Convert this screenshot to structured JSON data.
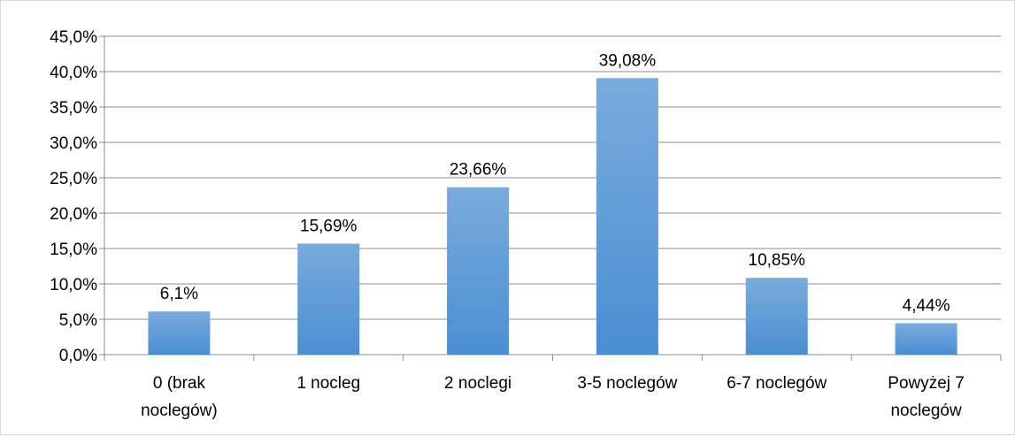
{
  "chart_data": {
    "type": "bar",
    "categories": [
      [
        "0 (brak",
        "noclegów)"
      ],
      [
        "1 nocleg"
      ],
      [
        "2 noclegi"
      ],
      [
        "3-5 noclegów"
      ],
      [
        "6-7 noclegów"
      ],
      [
        "Powyżej 7",
        "noclegów"
      ]
    ],
    "values": [
      6.1,
      15.69,
      23.66,
      39.08,
      10.85,
      4.44
    ],
    "data_labels": [
      "6,1%",
      "15,69%",
      "23,66%",
      "39,08%",
      "10,85%",
      "4,44%"
    ],
    "y_tick_labels": [
      "0,0%",
      "5,0%",
      "10,0%",
      "15,0%",
      "20,0%",
      "25,0%",
      "30,0%",
      "35,0%",
      "40,0%",
      "45,0%"
    ],
    "ylim": [
      0,
      45
    ],
    "y_step": 5,
    "grid": true,
    "title": "",
    "xlabel": "",
    "ylabel": "",
    "colors": {
      "bar_top": "#79abdc",
      "bar_bottom": "#4a8fd3",
      "grid": "#8c8c8c",
      "axis": "#8c8c8c"
    }
  }
}
